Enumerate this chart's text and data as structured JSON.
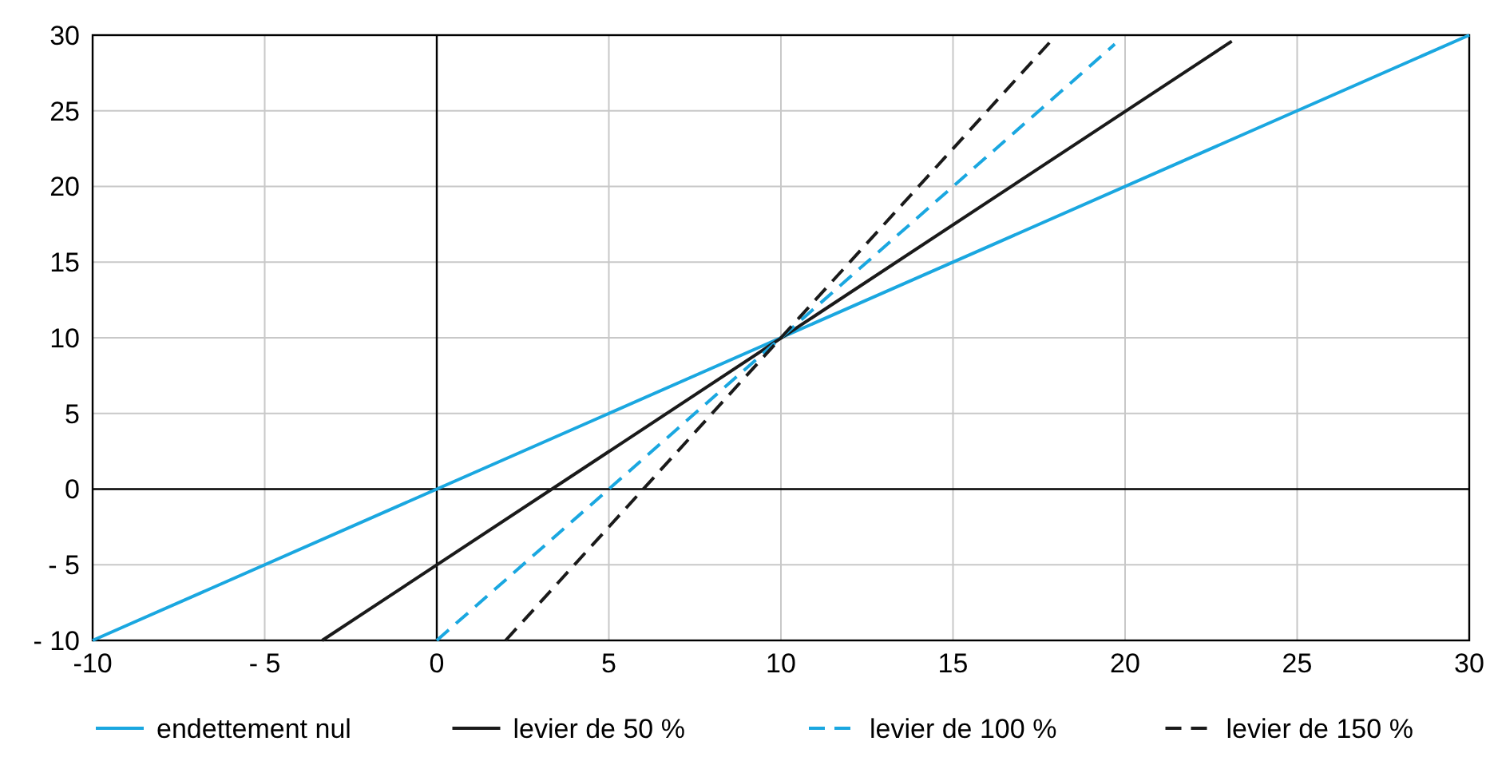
{
  "chart_data": {
    "type": "line",
    "series": [
      {
        "name": "endettement nul",
        "color": "#1aa7e0",
        "x": [
          -10,
          30
        ],
        "values": [
          -10,
          30
        ],
        "line_style": "solid"
      },
      {
        "name": "levier de 50 %",
        "color": "#1a1a1a",
        "x": [
          -3.33,
          23.1
        ],
        "values": [
          -10,
          29.6
        ],
        "line_style": "solid"
      },
      {
        "name": "levier de 100 %",
        "color": "#1aa7e0",
        "x": [
          0,
          19.7
        ],
        "values": [
          -10,
          29.4
        ],
        "line_style": "dashed"
      },
      {
        "name": "levier de 150 %",
        "color": "#1a1a1a",
        "x": [
          2,
          17.8
        ],
        "values": [
          -10,
          29.5
        ],
        "line_style": "dashed"
      }
    ],
    "xlim": [
      -10,
      30
    ],
    "ylim": [
      -10,
      30
    ],
    "xticks": [
      -10,
      {
        "value": -5,
        "label": "- 5"
      },
      0,
      5,
      10,
      15,
      20,
      25,
      30
    ],
    "yticks": [
      {
        "value": -10,
        "label": "- 10"
      },
      {
        "value": -5,
        "label": "- 5"
      },
      0,
      5,
      10,
      15,
      20,
      25,
      30
    ],
    "grid": true,
    "legend": "bottom",
    "marker": "none"
  }
}
